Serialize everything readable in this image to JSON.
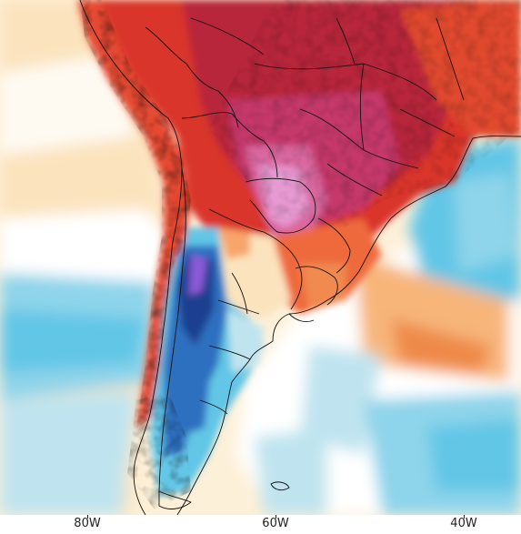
{
  "map": {
    "projection": "lat-lon",
    "layers": [
      "temperature-anomaly-field",
      "country-borders",
      "state-borders",
      "coastline"
    ],
    "colors": {
      "very_warm": "#c5386b",
      "hot": "#d9352a",
      "warm": "#ee6a3c",
      "mild_warm": "#f7a56b",
      "slightly_warm": "#fcd7a4",
      "neutral": "#ffffff",
      "slightly_cool": "#bfe4ef",
      "cool": "#62c6e6",
      "cold": "#2f6fc0",
      "very_cold": "#1a3f8f",
      "extreme_cold": "#8c5ad8",
      "extreme_hot": "#e79ad2",
      "border": "#111111"
    }
  },
  "x_axis": {
    "ticks": [
      {
        "label": "80W",
        "lon": -80
      },
      {
        "label": "60W",
        "lon": -60
      },
      {
        "label": "40W",
        "lon": -40
      }
    ]
  }
}
